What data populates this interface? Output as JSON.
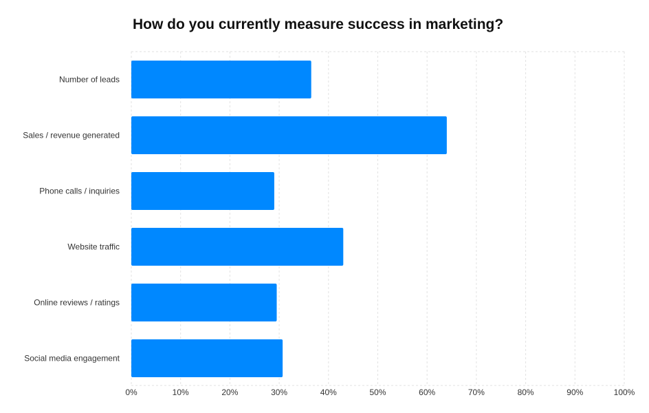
{
  "chart_data": {
    "type": "bar",
    "orientation": "horizontal",
    "title": "How do you currently measure success in marketing?",
    "categories": [
      "Number of leads",
      "Sales / revenue generated",
      "Phone calls / inquiries",
      "Website traffic",
      "Online reviews / ratings",
      "Social media engagement"
    ],
    "values": [
      36.5,
      64,
      29,
      43,
      29.5,
      30.7
    ],
    "xlim": [
      0,
      100
    ],
    "xticks": [
      0,
      10,
      20,
      30,
      40,
      50,
      60,
      70,
      80,
      90,
      100
    ],
    "xtick_labels": [
      "0%",
      "10%",
      "20%",
      "30%",
      "40%",
      "50%",
      "60%",
      "70%",
      "80%",
      "90%",
      "100%"
    ],
    "unit": "%",
    "grid": true,
    "legend": "none",
    "bar_color": "#0088FF",
    "grid_color": "#E2E2E2"
  }
}
